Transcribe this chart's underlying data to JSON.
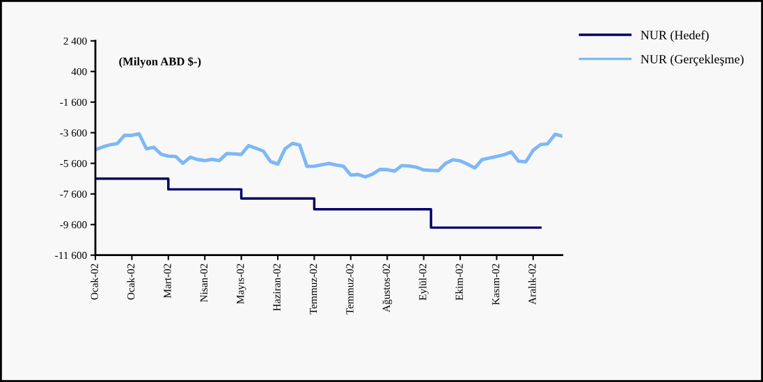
{
  "chart_data": {
    "type": "line",
    "annotations": [
      "(Milyon ABD $-)"
    ],
    "categories": [
      "Ocak-02",
      null,
      null,
      null,
      null,
      "Ocak-02",
      null,
      null,
      null,
      null,
      "Mart-02",
      null,
      null,
      null,
      null,
      "Nisan-02",
      null,
      null,
      null,
      null,
      "Mayıs-02",
      null,
      null,
      null,
      null,
      "Haziran-02",
      null,
      null,
      null,
      null,
      "Temmuz-02",
      null,
      null,
      null,
      null,
      "Temmuz-02",
      null,
      null,
      null,
      null,
      "Ağustos-02",
      null,
      null,
      null,
      null,
      "Eylül-02",
      null,
      null,
      null,
      null,
      "Ekim-02",
      null,
      null,
      null,
      null,
      "Kasım-02",
      null,
      null,
      null,
      null,
      "Aralık-02",
      null,
      null,
      null,
      null
    ],
    "ylim": [
      -11600,
      2400
    ],
    "yticks": [
      {
        "value": 2400,
        "label": "2 400"
      },
      {
        "value": 400,
        "label": "400"
      },
      {
        "value": -1600,
        "label": "-1 600"
      },
      {
        "value": -3600,
        "label": "-3 600"
      },
      {
        "value": -5600,
        "label": "-5 600"
      },
      {
        "value": -7600,
        "label": "-7 600"
      },
      {
        "value": -9600,
        "label": "-9 600"
      },
      {
        "value": -11600,
        "label": "-11 600"
      }
    ],
    "grid": false,
    "legend": "top right",
    "series": [
      {
        "name": "NUR (Hedef)",
        "color": "#000066",
        "type": "step",
        "values": [
          -6600,
          -6600,
          -6600,
          -6600,
          -6600,
          -6600,
          -6600,
          -6600,
          -6600,
          -6600,
          -7300,
          -7300,
          -7300,
          -7300,
          -7300,
          -7300,
          -7300,
          -7300,
          -7300,
          -7300,
          -7900,
          -7900,
          -7900,
          -7900,
          -7900,
          -7900,
          -7900,
          -7900,
          -7900,
          -7900,
          -8600,
          -8600,
          -8600,
          -8600,
          -8600,
          -8600,
          -8600,
          -8600,
          -8600,
          -8600,
          -8600,
          -8600,
          -8600,
          -8600,
          -8600,
          -8600,
          -9800,
          -9800,
          -9800,
          -9800,
          -9800,
          -9800,
          -9800,
          -9800,
          -9800,
          -9800,
          -9800,
          -9800,
          -9800,
          -9800,
          -9800,
          -9800,
          null,
          null,
          null
        ]
      },
      {
        "name": "NUR (Gerçekleşme)",
        "color": "#7db8f5",
        "values": [
          -4710,
          -4530,
          -4390,
          -4310,
          -3770,
          -3770,
          -3680,
          -4650,
          -4550,
          -5000,
          -5130,
          -5150,
          -5600,
          -5200,
          -5350,
          -5420,
          -5340,
          -5420,
          -4960,
          -4980,
          -5020,
          -4440,
          -4610,
          -4790,
          -5480,
          -5650,
          -4650,
          -4300,
          -4400,
          -5800,
          -5790,
          -5700,
          -5610,
          -5710,
          -5790,
          -6360,
          -6330,
          -6490,
          -6300,
          -6000,
          -6010,
          -6110,
          -5740,
          -5780,
          -5850,
          -6030,
          -6060,
          -6080,
          -5600,
          -5370,
          -5440,
          -5650,
          -5900,
          -5360,
          -5250,
          -5150,
          -5040,
          -4850,
          -5460,
          -5500,
          -4750,
          -4380,
          -4320,
          -3700,
          -3820
        ]
      }
    ]
  }
}
